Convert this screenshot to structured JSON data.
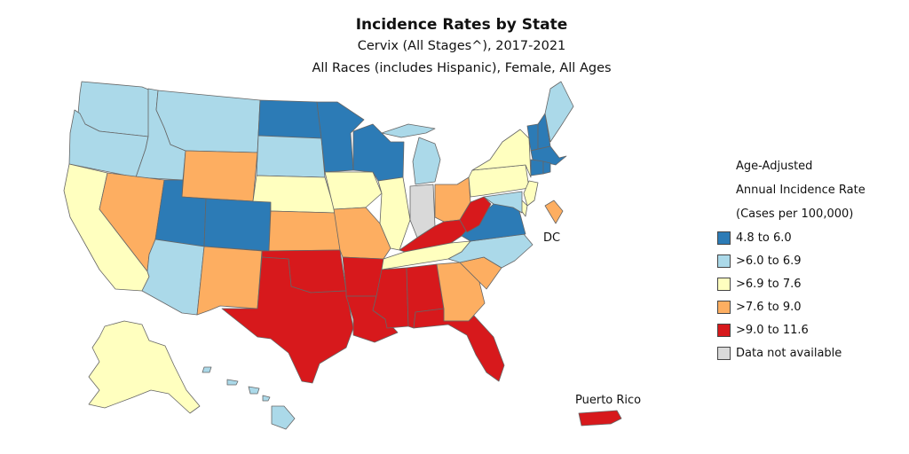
{
  "title": "Incidence Rates by State",
  "subtitle1": "Cervix (All Stages^), 2017-2021",
  "subtitle2": "All Races (includes Hispanic), Female, All Ages",
  "labels": {
    "dc": "DC",
    "puerto_rico": "Puerto Rico"
  },
  "legend": {
    "heading": [
      "Age-Adjusted",
      "Annual Incidence Rate",
      "(Cases per 100,000)"
    ],
    "items": [
      {
        "label": "4.8 to 6.0",
        "color": "#2c7bb6"
      },
      {
        "label": ">6.0 to 6.9",
        "color": "#abd9e9"
      },
      {
        "label": ">6.9 to 7.6",
        "color": "#ffffbf"
      },
      {
        "label": ">7.6 to 9.0",
        "color": "#fdae61"
      },
      {
        "label": ">9.0 to 11.6",
        "color": "#d7191c"
      },
      {
        "label": "Data not available",
        "color": "#d9d9d9"
      }
    ]
  },
  "states": {
    "WA": 1,
    "OR": 1,
    "CA": 2,
    "ID": 1,
    "NV": 3,
    "MT": 1,
    "WY": 3,
    "UT": 0,
    "AZ": 1,
    "CO": 0,
    "NM": 3,
    "ND": 0,
    "SD": 1,
    "NE": 2,
    "KS": 3,
    "OK": 4,
    "TX": 4,
    "MN": 0,
    "IA": 2,
    "MO": 3,
    "AR": 4,
    "LA": 4,
    "WI": 0,
    "IL": 2,
    "MI": 1,
    "IN": 5,
    "OH": 3,
    "KY": 4,
    "TN": 2,
    "MS": 4,
    "AL": 4,
    "GA": 3,
    "FL": 4,
    "SC": 3,
    "NC": 1,
    "VA": 0,
    "WV": 4,
    "PA": 2,
    "NY": 2,
    "VT": 0,
    "NH": 0,
    "ME": 1,
    "MA": 0,
    "CT": 0,
    "RI": 0,
    "NJ": 2,
    "DE": 2,
    "MD": 1,
    "DC": 3,
    "AK": 2,
    "HI": 1,
    "PR": 4
  }
}
